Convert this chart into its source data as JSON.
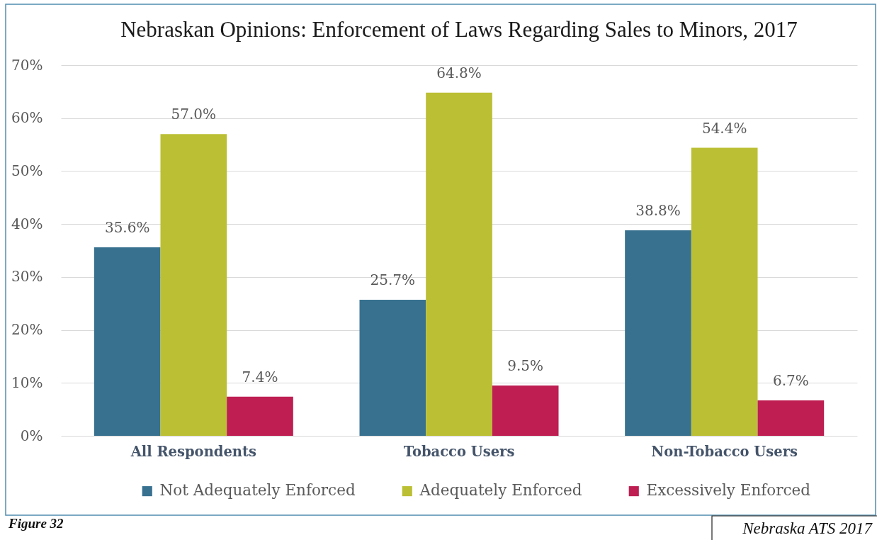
{
  "chart_data": {
    "type": "bar",
    "title": "Nebraskan Opinions: Enforcement of Laws Regarding Sales to Minors, 2017",
    "categories": [
      "All Respondents",
      "Tobacco Users",
      "Non-Tobacco Users"
    ],
    "series": [
      {
        "name": "Not Adequately Enforced",
        "color": "#38718f",
        "values": [
          35.6,
          25.7,
          38.8
        ],
        "value_labels": [
          "35.6%",
          "25.7%",
          "38.8%"
        ]
      },
      {
        "name": "Adequately Enforced",
        "color": "#bbbf33",
        "values": [
          57.0,
          64.8,
          54.4
        ],
        "value_labels": [
          "57.0%",
          "64.8%",
          "54.4%"
        ]
      },
      {
        "name": "Excessively Enforced",
        "color": "#be1e52",
        "values": [
          7.4,
          9.5,
          6.7
        ],
        "value_labels": [
          "7.4%",
          "9.5%",
          "6.7%"
        ]
      }
    ],
    "ylim": [
      0,
      70
    ],
    "yticks": [
      {
        "value": 0,
        "label": "0%"
      },
      {
        "value": 10,
        "label": "10%"
      },
      {
        "value": 20,
        "label": "20%"
      },
      {
        "value": 30,
        "label": "30%"
      },
      {
        "value": 40,
        "label": "40%"
      },
      {
        "value": 50,
        "label": "50%"
      },
      {
        "value": 60,
        "label": "60%"
      },
      {
        "value": 70,
        "label": "70%"
      }
    ],
    "grid": "y",
    "legend": "bottom",
    "annotations": [
      "Figure 32",
      "Nebraska ATS 2017"
    ]
  }
}
